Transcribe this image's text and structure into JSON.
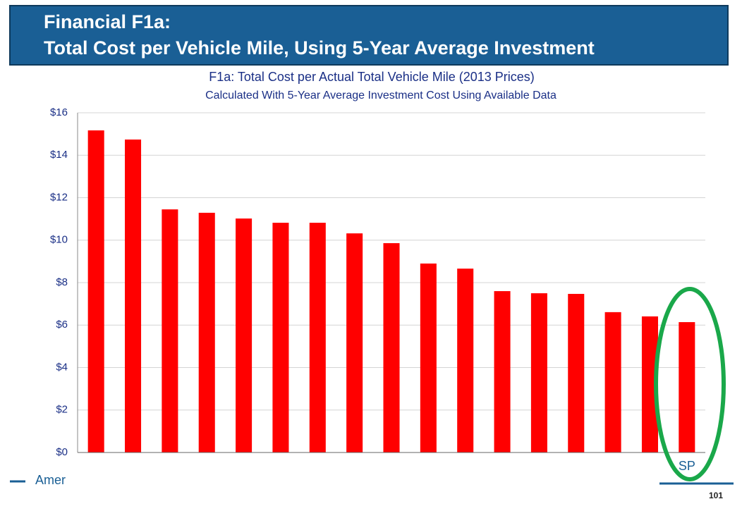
{
  "header": {
    "line1": "Financial F1a:",
    "line2": "Total Cost per Vehicle Mile, Using 5-Year Average Investment"
  },
  "chart_data": {
    "type": "bar",
    "title": "F1a: Total Cost per Actual Total Vehicle Mile (2013 Prices)",
    "subtitle": "Calculated With 5-Year Average Investment Cost Using Available Data",
    "categories": [
      null,
      null,
      null,
      null,
      null,
      null,
      null,
      null,
      null,
      null,
      null,
      null,
      null,
      null,
      null,
      null,
      "SP"
    ],
    "values": [
      15.17,
      14.74,
      11.45,
      11.29,
      11.02,
      10.82,
      10.82,
      10.32,
      9.86,
      8.9,
      8.66,
      7.6,
      7.5,
      7.47,
      6.61,
      6.41,
      6.14
    ],
    "color": "#ff0000",
    "ylim": [
      0,
      16
    ],
    "yticks": [
      {
        "value": 0,
        "label": "$0"
      },
      {
        "value": 2,
        "label": "$2"
      },
      {
        "value": 4,
        "label": "$4"
      },
      {
        "value": 6,
        "label": "$6"
      },
      {
        "value": 8,
        "label": "$8"
      },
      {
        "value": 10,
        "label": "$10"
      },
      {
        "value": 12,
        "label": "$12"
      },
      {
        "value": 14,
        "label": "$14"
      },
      {
        "value": 16,
        "label": "$16"
      }
    ],
    "grid": true
  },
  "footer": {
    "text": "Amer",
    "page_number": "101"
  }
}
